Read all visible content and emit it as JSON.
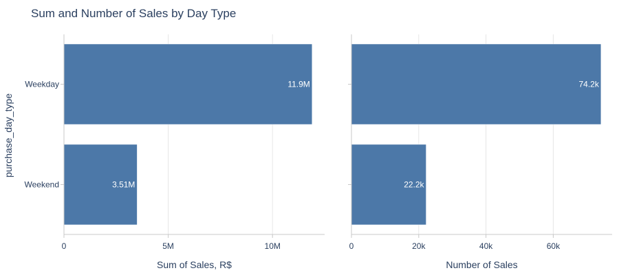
{
  "chart_data": {
    "title": "Sum and Number of Sales by Day Type",
    "ylabel": "purchase_day_type",
    "categories": [
      "Weekday",
      "Weekend"
    ],
    "colors": {
      "bar": "#4c78a8",
      "text": "#2a3f5f",
      "grid": "#e6e6e6",
      "axis": "#c8c8c8"
    },
    "panels": [
      {
        "type": "bar",
        "orientation": "horizontal",
        "xlabel": "Sum of Sales, R$",
        "xlim": [
          0,
          12500000
        ],
        "ticks": [
          0,
          5000000,
          10000000
        ],
        "tick_labels": [
          "0",
          "5M",
          "10M"
        ],
        "values": [
          11900000,
          3510000
        ],
        "value_labels": [
          "11.9M",
          "3.51M"
        ]
      },
      {
        "type": "bar",
        "orientation": "horizontal",
        "xlabel": "Number of Sales",
        "xlim": [
          0,
          77500
        ],
        "ticks": [
          0,
          20000,
          40000,
          60000
        ],
        "tick_labels": [
          "0",
          "20k",
          "40k",
          "60k"
        ],
        "values": [
          74200,
          22200
        ],
        "value_labels": [
          "74.2k",
          "22.2k"
        ]
      }
    ]
  }
}
